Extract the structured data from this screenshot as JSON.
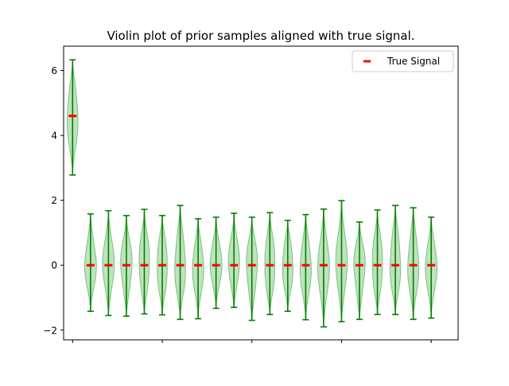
{
  "chart_data": {
    "type": "violin",
    "title": "Violin plot of prior samples aligned with true signal.",
    "xlabel": "",
    "ylabel": "",
    "ylim": [
      -2.3,
      6.75
    ],
    "xlim": [
      -0.5,
      21.5
    ],
    "yticks": [
      -2,
      0,
      2,
      4,
      6
    ],
    "ytick_labels": [
      "−2",
      "0",
      "2",
      "4",
      "6"
    ],
    "xticks": [
      0,
      5,
      10,
      15,
      20
    ],
    "xtick_labels": [
      "",
      "",
      "",
      "",
      ""
    ],
    "grid": false,
    "legend": {
      "position": "top-right",
      "entries": [
        {
          "label": "True Signal",
          "color": "#ff0000",
          "marker": "dash"
        }
      ]
    },
    "colors": {
      "violin_fill": "#2ca02c",
      "violin_line": "#008000",
      "true_signal": "#ff0000"
    },
    "violins": [
      {
        "x": 0,
        "min": 2.78,
        "max": 6.33,
        "center": 4.6
      },
      {
        "x": 1,
        "min": -1.42,
        "max": 1.58,
        "center": 0.0
      },
      {
        "x": 2,
        "min": -1.55,
        "max": 1.68,
        "center": 0.0
      },
      {
        "x": 3,
        "min": -1.57,
        "max": 1.53,
        "center": 0.0
      },
      {
        "x": 4,
        "min": -1.5,
        "max": 1.72,
        "center": 0.0
      },
      {
        "x": 5,
        "min": -1.53,
        "max": 1.53,
        "center": 0.0
      },
      {
        "x": 6,
        "min": -1.67,
        "max": 1.84,
        "center": 0.0
      },
      {
        "x": 7,
        "min": -1.65,
        "max": 1.43,
        "center": 0.0
      },
      {
        "x": 8,
        "min": -1.33,
        "max": 1.48,
        "center": 0.0
      },
      {
        "x": 9,
        "min": -1.3,
        "max": 1.6,
        "center": 0.0
      },
      {
        "x": 10,
        "min": -1.7,
        "max": 1.48,
        "center": 0.0
      },
      {
        "x": 11,
        "min": -1.52,
        "max": 1.62,
        "center": 0.0
      },
      {
        "x": 12,
        "min": -1.42,
        "max": 1.38,
        "center": 0.0
      },
      {
        "x": 13,
        "min": -1.68,
        "max": 1.56,
        "center": 0.0
      },
      {
        "x": 14,
        "min": -1.9,
        "max": 1.73,
        "center": 0.0
      },
      {
        "x": 15,
        "min": -1.74,
        "max": 1.99,
        "center": 0.0
      },
      {
        "x": 16,
        "min": -1.67,
        "max": 1.33,
        "center": 0.0
      },
      {
        "x": 17,
        "min": -1.52,
        "max": 1.7,
        "center": 0.0
      },
      {
        "x": 18,
        "min": -1.52,
        "max": 1.84,
        "center": 0.0
      },
      {
        "x": 19,
        "min": -1.67,
        "max": 1.77,
        "center": 0.0
      },
      {
        "x": 20,
        "min": -1.63,
        "max": 1.48,
        "center": 0.0
      }
    ],
    "true_signal": [
      4.6,
      0,
      0,
      0,
      0,
      0,
      0,
      0,
      0,
      0,
      0,
      0,
      0,
      0,
      0,
      0,
      0,
      0,
      0,
      0,
      0
    ]
  }
}
